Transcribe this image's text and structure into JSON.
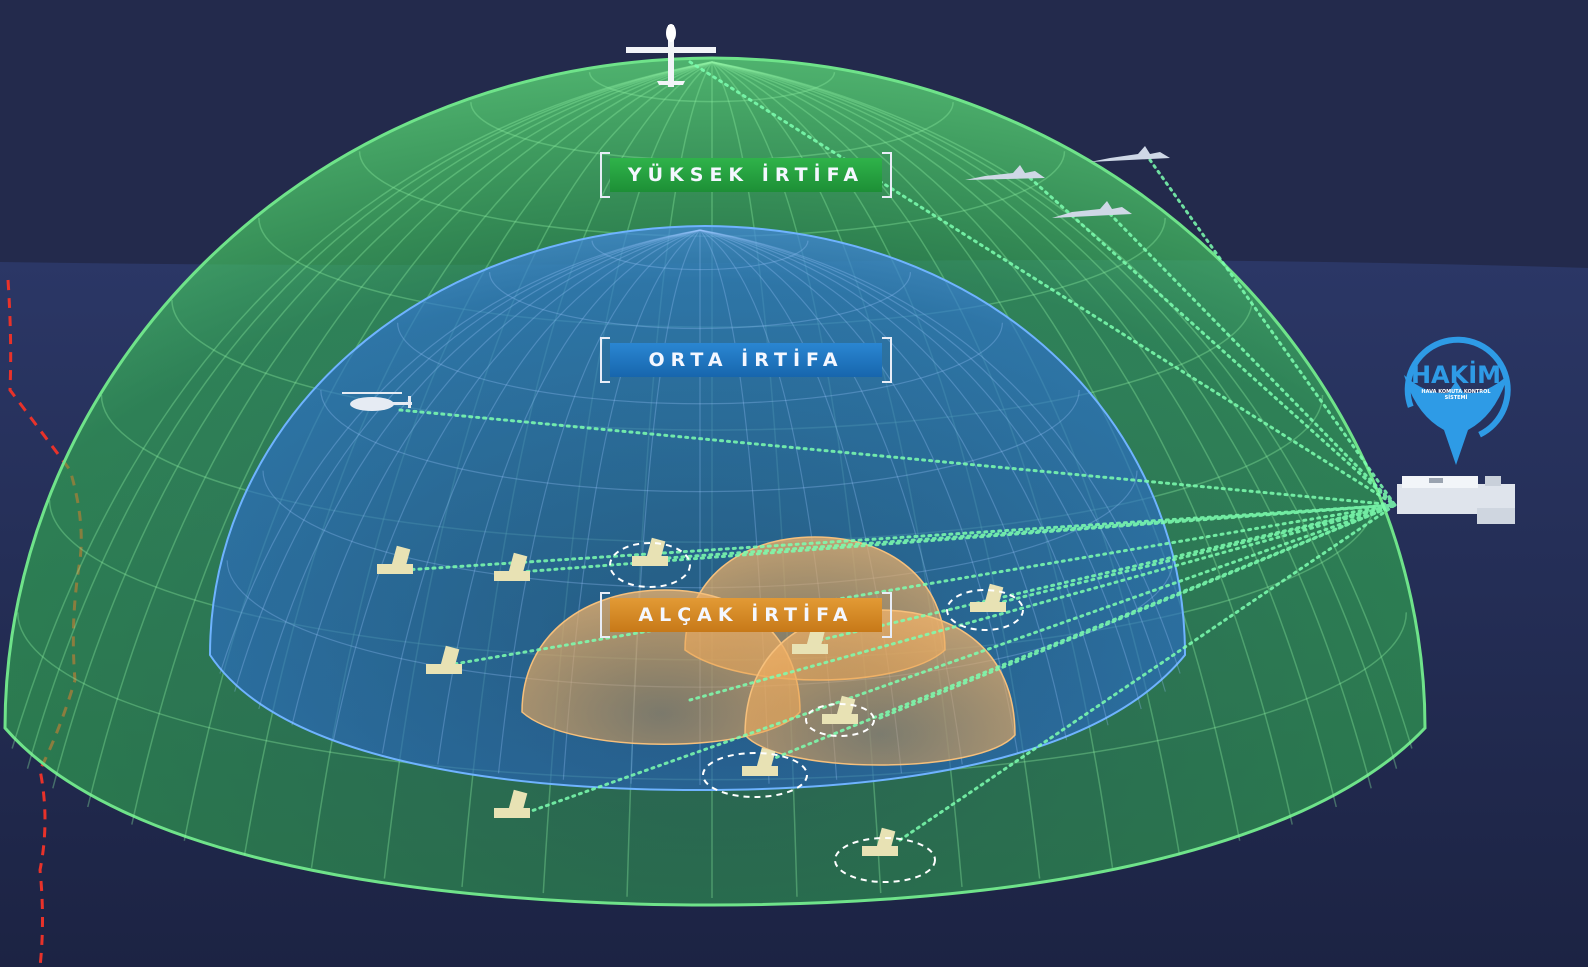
{
  "zones": {
    "high": {
      "label": "YÜKSEK İRTİFA",
      "color": "#34c24f"
    },
    "mid": {
      "label": "ORTA İRTİFA",
      "color": "#2a86d2"
    },
    "low": {
      "label": "ALÇAK İRTİFA",
      "color": "#e59a3a"
    }
  },
  "logo": {
    "name": "HAKİM",
    "subtitle_line1": "HAVA KOMUTA KONTROL",
    "subtitle_line2": "SİSTEMİ",
    "color": "#2e9be6"
  },
  "icons": [
    "uav-icon",
    "fighter-jet-icon",
    "helicopter-icon",
    "radar-launcher-icon",
    "command-center-icon",
    "eagle-icon"
  ],
  "colors": {
    "sky": "#222849",
    "ground": "#2a3560",
    "datalink": "#7dffb0",
    "border": "#e8322a"
  }
}
